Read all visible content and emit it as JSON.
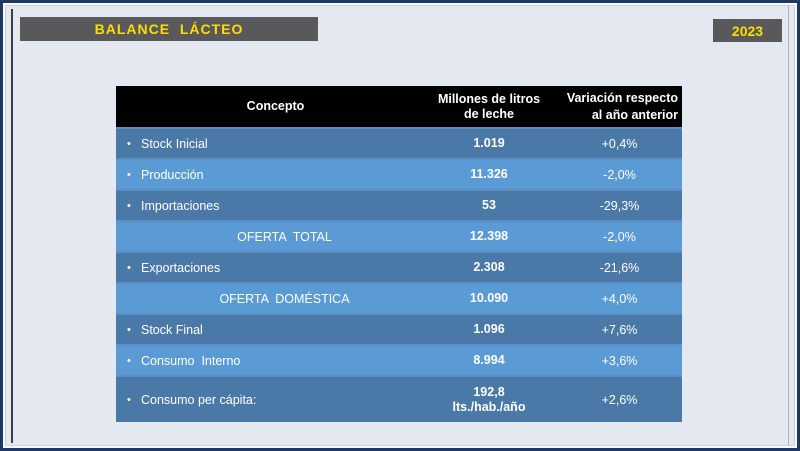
{
  "colors": {
    "background": "#E3E8F1",
    "frame_navy": "#1F3864",
    "bevel_white": "#FAFBFD",
    "title_bar_bg": "#59595B",
    "accent_yellow": "#FFDD00",
    "header_bg": "#010101",
    "row_dark": "#4A79A8",
    "row_light": "#5B9BD5",
    "seam_blue": "#5E8FC4",
    "text_white": "#FFFFFF"
  },
  "frame": {
    "title": "BALANCE  LÁCTEO",
    "year_label": "2023"
  },
  "table": {
    "col_headers": {
      "concept": "Concepto",
      "volume": "Millones de litros\nde leche",
      "variation": "Variación respecto\nal año anterior"
    },
    "rows": [
      {
        "bullet": "•",
        "concept": "Stock Inicial",
        "volume": "1.019",
        "variation": "+0,4%",
        "tone": "dark",
        "align": "left"
      },
      {
        "bullet": "•",
        "concept": "Producción",
        "volume": "11.326",
        "variation": "-2,0%",
        "tone": "light",
        "align": "left"
      },
      {
        "bullet": "•",
        "concept": "Importaciones",
        "volume": "53",
        "variation": "-29,3%",
        "tone": "dark",
        "align": "left"
      },
      {
        "bullet": "",
        "concept": "OFERTA  TOTAL",
        "volume": "12.398",
        "variation": "-2,0%",
        "tone": "light",
        "align": "center"
      },
      {
        "bullet": "•",
        "concept": "Exportaciones",
        "volume": "2.308",
        "variation": "-21,6%",
        "tone": "dark",
        "align": "left"
      },
      {
        "bullet": "",
        "concept": "OFERTA  DOMÉSTICA",
        "volume": "10.090",
        "variation": "+4,0%",
        "tone": "light",
        "align": "center"
      },
      {
        "bullet": "•",
        "concept": "Stock Final",
        "volume": "1.096",
        "variation": "+7,6%",
        "tone": "dark",
        "align": "left"
      },
      {
        "bullet": "•",
        "concept": "Consumo  Interno",
        "volume": "8.994",
        "variation": "+3,6%",
        "tone": "light",
        "align": "left"
      },
      {
        "bullet": "•",
        "concept": "Consumo per cápita:",
        "volume": "192,8\nlts./hab./año",
        "variation": "+2,6%",
        "tone": "dark",
        "align": "left",
        "tall": true
      }
    ]
  }
}
